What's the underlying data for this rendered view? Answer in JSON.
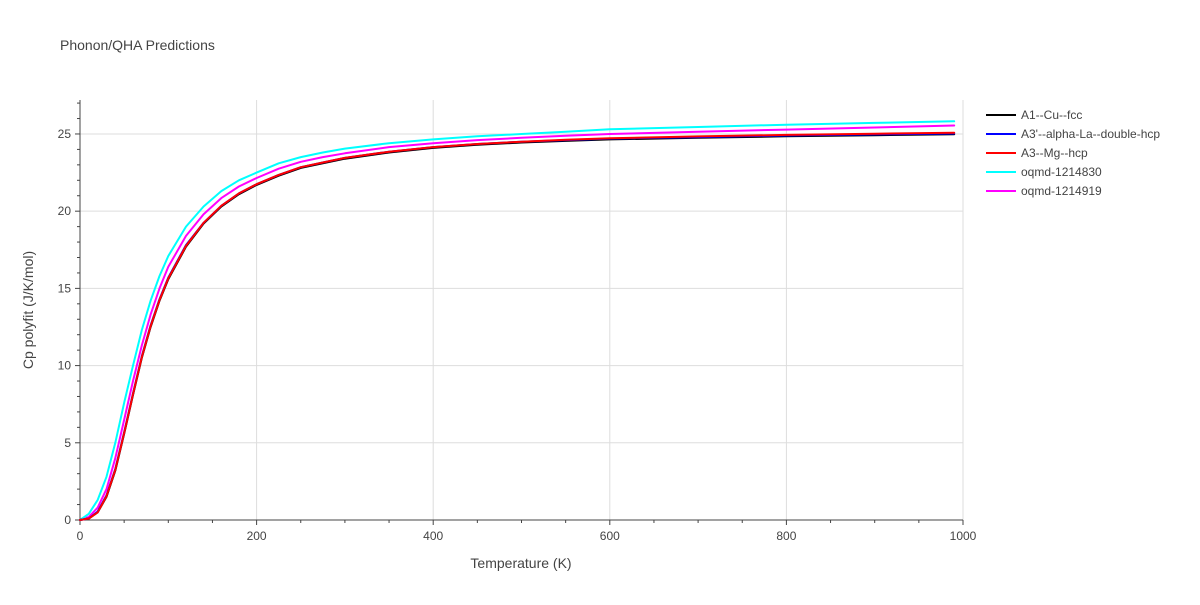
{
  "chart_data": {
    "type": "line",
    "title": "Phonon/QHA Predictions",
    "xlabel": "Temperature (K)",
    "ylabel": "Cp polyfit (J/K/mol)",
    "xlim": [
      0,
      1000
    ],
    "ylim": [
      0,
      27.2
    ],
    "xticks": [
      0,
      200,
      400,
      600,
      800,
      1000
    ],
    "yticks": [
      0,
      5,
      10,
      15,
      20,
      25
    ],
    "grid": true,
    "legend_position": "right",
    "x": [
      0,
      10,
      20,
      30,
      40,
      50,
      60,
      70,
      80,
      90,
      100,
      120,
      140,
      160,
      180,
      200,
      225,
      250,
      275,
      300,
      350,
      400,
      450,
      500,
      550,
      600,
      700,
      800,
      900,
      990
    ],
    "series": [
      {
        "name": "A1--Cu--fcc",
        "color": "#000000",
        "values": [
          0,
          0.1,
          0.5,
          1.5,
          3.2,
          5.6,
          8.1,
          10.5,
          12.5,
          14.2,
          15.6,
          17.7,
          19.2,
          20.3,
          21.1,
          21.7,
          22.3,
          22.8,
          23.1,
          23.4,
          23.8,
          24.1,
          24.3,
          24.45,
          24.55,
          24.65,
          24.75,
          24.85,
          24.92,
          24.98
        ]
      },
      {
        "name": "A3'--alpha-La--double-hcp",
        "color": "#0000ff",
        "values": [
          0,
          0.1,
          0.55,
          1.6,
          3.3,
          5.7,
          8.2,
          10.6,
          12.6,
          14.3,
          15.7,
          17.8,
          19.25,
          20.35,
          21.15,
          21.75,
          22.35,
          22.85,
          23.15,
          23.45,
          23.85,
          24.15,
          24.35,
          24.5,
          24.6,
          24.7,
          24.8,
          24.9,
          24.97,
          25.03
        ]
      },
      {
        "name": "A3--Mg--hcp",
        "color": "#ff0000",
        "values": [
          0,
          0.1,
          0.5,
          1.55,
          3.25,
          5.65,
          8.15,
          10.55,
          12.55,
          14.25,
          15.65,
          17.75,
          19.25,
          20.35,
          21.15,
          21.75,
          22.35,
          22.85,
          23.15,
          23.45,
          23.85,
          24.15,
          24.35,
          24.5,
          24.62,
          24.72,
          24.84,
          24.94,
          25.02,
          25.08
        ]
      },
      {
        "name": "oqmd-1214830",
        "color": "#00ffff",
        "values": [
          0,
          0.4,
          1.3,
          2.8,
          5.0,
          7.6,
          10.0,
          12.3,
          14.2,
          15.8,
          17.1,
          19.0,
          20.3,
          21.3,
          22.0,
          22.5,
          23.1,
          23.5,
          23.8,
          24.05,
          24.4,
          24.65,
          24.85,
          25.0,
          25.15,
          25.3,
          25.45,
          25.6,
          25.72,
          25.82
        ]
      },
      {
        "name": "oqmd-1214919",
        "color": "#ff00ff",
        "values": [
          0,
          0.2,
          0.8,
          2.0,
          4.0,
          6.5,
          9.0,
          11.3,
          13.3,
          15.0,
          16.4,
          18.4,
          19.8,
          20.85,
          21.6,
          22.15,
          22.75,
          23.2,
          23.5,
          23.75,
          24.15,
          24.4,
          24.6,
          24.75,
          24.88,
          25.0,
          25.15,
          25.28,
          25.42,
          25.55
        ]
      }
    ]
  }
}
